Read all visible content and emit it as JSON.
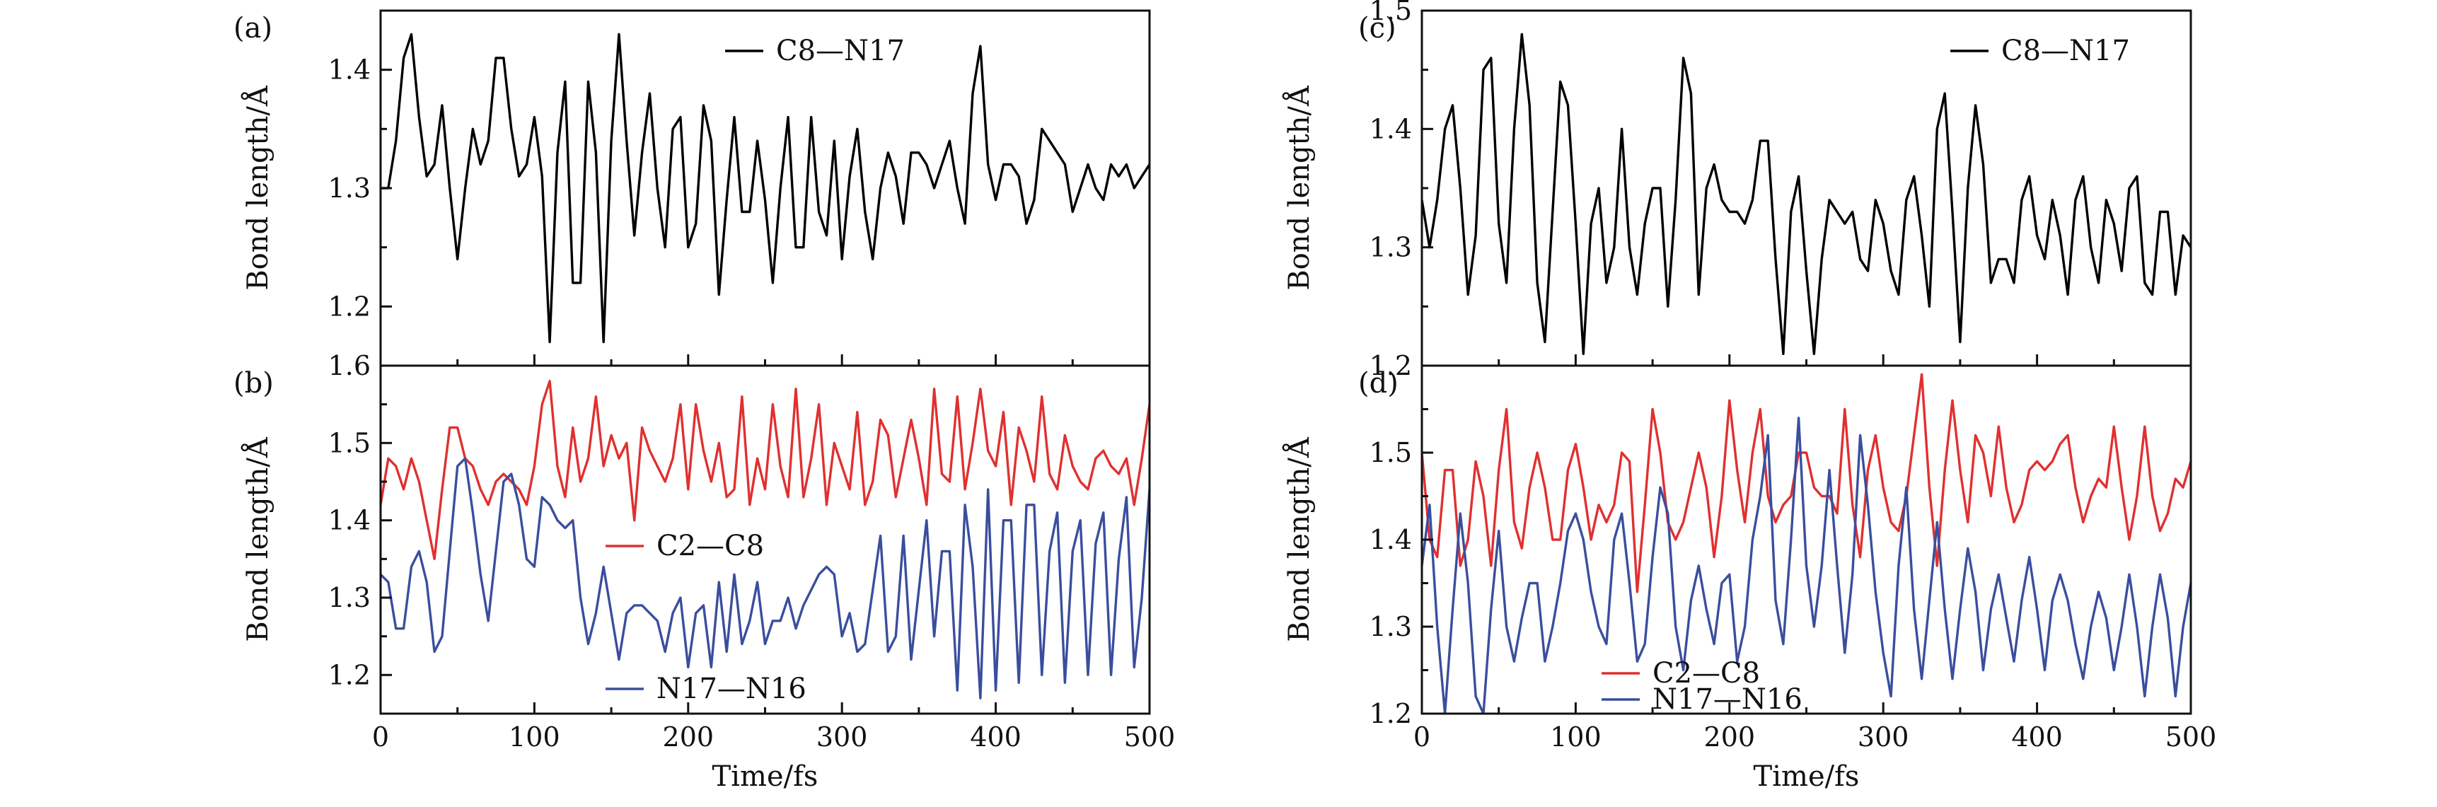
{
  "chart_data": [
    {
      "type": "line",
      "panel": "(a)",
      "x": [
        0,
        5,
        10,
        15,
        20,
        25,
        30,
        35,
        40,
        45,
        50,
        55,
        60,
        65,
        70,
        75,
        80,
        85,
        90,
        95,
        100,
        105,
        110,
        115,
        120,
        125,
        130,
        135,
        140,
        145,
        150,
        155,
        160,
        165,
        170,
        175,
        180,
        185,
        190,
        195,
        200,
        205,
        210,
        215,
        220,
        225,
        230,
        235,
        240,
        245,
        250,
        255,
        260,
        265,
        270,
        275,
        280,
        285,
        290,
        295,
        300,
        305,
        310,
        315,
        320,
        325,
        330,
        335,
        340,
        345,
        350,
        355,
        360,
        365,
        370,
        375,
        380,
        385,
        390,
        395,
        400,
        405,
        410,
        415,
        420,
        425,
        430,
        435,
        440,
        445,
        450,
        455,
        460,
        465,
        470,
        475,
        480,
        485,
        490,
        495,
        500
      ],
      "series": [
        {
          "name": "C8—N17",
          "color": "#000000",
          "values": [
            1.3,
            1.3,
            1.34,
            1.41,
            1.43,
            1.36,
            1.31,
            1.32,
            1.37,
            1.3,
            1.24,
            1.3,
            1.35,
            1.32,
            1.34,
            1.41,
            1.41,
            1.35,
            1.31,
            1.32,
            1.36,
            1.31,
            1.17,
            1.33,
            1.39,
            1.22,
            1.22,
            1.39,
            1.33,
            1.17,
            1.34,
            1.43,
            1.34,
            1.26,
            1.33,
            1.38,
            1.3,
            1.25,
            1.35,
            1.36,
            1.25,
            1.27,
            1.37,
            1.34,
            1.21,
            1.29,
            1.36,
            1.28,
            1.28,
            1.34,
            1.29,
            1.22,
            1.3,
            1.36,
            1.25,
            1.25,
            1.36,
            1.28,
            1.26,
            1.34,
            1.24,
            1.31,
            1.35,
            1.28,
            1.24,
            1.3,
            1.33,
            1.31,
            1.27,
            1.33,
            1.33,
            1.32,
            1.3,
            1.32,
            1.34,
            1.3,
            1.27,
            1.38,
            1.42,
            1.32,
            1.29,
            1.32,
            1.32,
            1.31,
            1.27,
            1.29,
            1.35,
            1.34,
            1.33,
            1.32,
            1.28,
            1.3,
            1.32,
            1.3,
            1.29,
            1.32,
            1.31,
            1.32,
            1.3,
            1.31,
            1.32
          ]
        }
      ],
      "xlim": [
        0,
        500
      ],
      "ylim": [
        1.15,
        1.45
      ],
      "yticks": [
        1.2,
        1.3,
        1.4
      ],
      "ytick_labels": [
        "1.2",
        "1.3",
        "1.4"
      ],
      "ylabel": "Bond length/Å",
      "legend": "top-right"
    },
    {
      "type": "line",
      "panel": "(b)",
      "x": [
        0,
        5,
        10,
        15,
        20,
        25,
        30,
        35,
        40,
        45,
        50,
        55,
        60,
        65,
        70,
        75,
        80,
        85,
        90,
        95,
        100,
        105,
        110,
        115,
        120,
        125,
        130,
        135,
        140,
        145,
        150,
        155,
        160,
        165,
        170,
        175,
        180,
        185,
        190,
        195,
        200,
        205,
        210,
        215,
        220,
        225,
        230,
        235,
        240,
        245,
        250,
        255,
        260,
        265,
        270,
        275,
        280,
        285,
        290,
        295,
        300,
        305,
        310,
        315,
        320,
        325,
        330,
        335,
        340,
        345,
        350,
        355,
        360,
        365,
        370,
        375,
        380,
        385,
        390,
        395,
        400,
        405,
        410,
        415,
        420,
        425,
        430,
        435,
        440,
        445,
        450,
        455,
        460,
        465,
        470,
        475,
        480,
        485,
        490,
        495,
        500
      ],
      "series": [
        {
          "name": "C2—C8",
          "color": "#e03030",
          "values": [
            1.42,
            1.48,
            1.47,
            1.44,
            1.48,
            1.45,
            1.4,
            1.35,
            1.44,
            1.52,
            1.52,
            1.48,
            1.47,
            1.44,
            1.42,
            1.45,
            1.46,
            1.45,
            1.44,
            1.42,
            1.47,
            1.55,
            1.58,
            1.47,
            1.43,
            1.52,
            1.45,
            1.48,
            1.56,
            1.47,
            1.51,
            1.48,
            1.5,
            1.4,
            1.52,
            1.49,
            1.47,
            1.45,
            1.48,
            1.55,
            1.44,
            1.55,
            1.49,
            1.45,
            1.5,
            1.43,
            1.44,
            1.56,
            1.42,
            1.48,
            1.44,
            1.55,
            1.47,
            1.43,
            1.57,
            1.43,
            1.48,
            1.55,
            1.42,
            1.5,
            1.47,
            1.44,
            1.54,
            1.42,
            1.45,
            1.53,
            1.51,
            1.43,
            1.48,
            1.53,
            1.48,
            1.42,
            1.57,
            1.46,
            1.45,
            1.56,
            1.44,
            1.5,
            1.57,
            1.49,
            1.47,
            1.54,
            1.42,
            1.52,
            1.49,
            1.45,
            1.56,
            1.46,
            1.44,
            1.51,
            1.47,
            1.45,
            1.44,
            1.48,
            1.49,
            1.47,
            1.46,
            1.48,
            1.42,
            1.48,
            1.55
          ]
        },
        {
          "name": "N17—N16",
          "color": "#3a4e9e",
          "values": [
            1.33,
            1.32,
            1.26,
            1.26,
            1.34,
            1.36,
            1.32,
            1.23,
            1.25,
            1.36,
            1.47,
            1.48,
            1.41,
            1.33,
            1.27,
            1.36,
            1.45,
            1.46,
            1.42,
            1.35,
            1.34,
            1.43,
            1.42,
            1.4,
            1.39,
            1.4,
            1.3,
            1.24,
            1.28,
            1.34,
            1.28,
            1.22,
            1.28,
            1.29,
            1.29,
            1.28,
            1.27,
            1.23,
            1.28,
            1.3,
            1.21,
            1.28,
            1.29,
            1.21,
            1.32,
            1.23,
            1.33,
            1.24,
            1.27,
            1.32,
            1.24,
            1.27,
            1.27,
            1.3,
            1.26,
            1.29,
            1.31,
            1.33,
            1.34,
            1.33,
            1.25,
            1.28,
            1.23,
            1.24,
            1.31,
            1.38,
            1.23,
            1.25,
            1.38,
            1.22,
            1.31,
            1.4,
            1.25,
            1.36,
            1.36,
            1.18,
            1.42,
            1.34,
            1.17,
            1.44,
            1.18,
            1.4,
            1.4,
            1.19,
            1.42,
            1.42,
            1.2,
            1.36,
            1.41,
            1.19,
            1.36,
            1.4,
            1.2,
            1.37,
            1.41,
            1.2,
            1.35,
            1.43,
            1.21,
            1.3,
            1.44
          ]
        }
      ],
      "xlim": [
        0,
        500
      ],
      "ylim": [
        1.15,
        1.6
      ],
      "yticks": [
        1.2,
        1.3,
        1.4,
        1.5,
        1.6
      ],
      "ytick_labels": [
        "1.2",
        "1.3",
        "1.4",
        "1.5",
        "1.6"
      ],
      "xticks": [
        0,
        100,
        200,
        300,
        400,
        500
      ],
      "xtick_labels": [
        "0",
        "100",
        "200",
        "300",
        "400",
        "500"
      ],
      "xlabel": "Time/fs",
      "ylabel": "Bond length/Å",
      "legend": "center"
    },
    {
      "type": "line",
      "panel": "(c)",
      "x": [
        0,
        5,
        10,
        15,
        20,
        25,
        30,
        35,
        40,
        45,
        50,
        55,
        60,
        65,
        70,
        75,
        80,
        85,
        90,
        95,
        100,
        105,
        110,
        115,
        120,
        125,
        130,
        135,
        140,
        145,
        150,
        155,
        160,
        165,
        170,
        175,
        180,
        185,
        190,
        195,
        200,
        205,
        210,
        215,
        220,
        225,
        230,
        235,
        240,
        245,
        250,
        255,
        260,
        265,
        270,
        275,
        280,
        285,
        290,
        295,
        300,
        305,
        310,
        315,
        320,
        325,
        330,
        335,
        340,
        345,
        350,
        355,
        360,
        365,
        370,
        375,
        380,
        385,
        390,
        395,
        400,
        405,
        410,
        415,
        420,
        425,
        430,
        435,
        440,
        445,
        450,
        455,
        460,
        465,
        470,
        475,
        480,
        485,
        490,
        495,
        500
      ],
      "series": [
        {
          "name": "C8—N17",
          "color": "#000000",
          "values": [
            1.34,
            1.3,
            1.34,
            1.4,
            1.42,
            1.35,
            1.26,
            1.31,
            1.45,
            1.46,
            1.32,
            1.27,
            1.4,
            1.48,
            1.42,
            1.27,
            1.22,
            1.33,
            1.44,
            1.42,
            1.32,
            1.21,
            1.32,
            1.35,
            1.27,
            1.3,
            1.4,
            1.3,
            1.26,
            1.32,
            1.35,
            1.35,
            1.25,
            1.34,
            1.46,
            1.43,
            1.26,
            1.35,
            1.37,
            1.34,
            1.33,
            1.33,
            1.32,
            1.34,
            1.39,
            1.39,
            1.29,
            1.21,
            1.33,
            1.36,
            1.28,
            1.21,
            1.29,
            1.34,
            1.33,
            1.32,
            1.33,
            1.29,
            1.28,
            1.34,
            1.32,
            1.28,
            1.26,
            1.34,
            1.36,
            1.31,
            1.25,
            1.4,
            1.43,
            1.33,
            1.22,
            1.35,
            1.42,
            1.37,
            1.27,
            1.29,
            1.29,
            1.27,
            1.34,
            1.36,
            1.31,
            1.29,
            1.34,
            1.31,
            1.26,
            1.34,
            1.36,
            1.3,
            1.27,
            1.34,
            1.32,
            1.28,
            1.35,
            1.36,
            1.27,
            1.26,
            1.33,
            1.33,
            1.26,
            1.31,
            1.3
          ]
        }
      ],
      "xlim": [
        0,
        500
      ],
      "ylim": [
        1.2,
        1.5
      ],
      "yticks": [
        1.2,
        1.3,
        1.4,
        1.5
      ],
      "ytick_labels": [
        "1.2",
        "1.3",
        "1.4",
        "1.5"
      ],
      "ylabel": "Bond length/Å",
      "legend": "top-right"
    },
    {
      "type": "line",
      "panel": "(d)",
      "x": [
        0,
        5,
        10,
        15,
        20,
        25,
        30,
        35,
        40,
        45,
        50,
        55,
        60,
        65,
        70,
        75,
        80,
        85,
        90,
        95,
        100,
        105,
        110,
        115,
        120,
        125,
        130,
        135,
        140,
        145,
        150,
        155,
        160,
        165,
        170,
        175,
        180,
        185,
        190,
        195,
        200,
        205,
        210,
        215,
        220,
        225,
        230,
        235,
        240,
        245,
        250,
        255,
        260,
        265,
        270,
        275,
        280,
        285,
        290,
        295,
        300,
        305,
        310,
        315,
        320,
        325,
        330,
        335,
        340,
        345,
        350,
        355,
        360,
        365,
        370,
        375,
        380,
        385,
        390,
        395,
        400,
        405,
        410,
        415,
        420,
        425,
        430,
        435,
        440,
        445,
        450,
        455,
        460,
        465,
        470,
        475,
        480,
        485,
        490,
        495,
        500
      ],
      "series": [
        {
          "name": "C2—C8",
          "color": "#e03030",
          "values": [
            1.5,
            1.4,
            1.38,
            1.48,
            1.48,
            1.37,
            1.4,
            1.49,
            1.45,
            1.37,
            1.48,
            1.55,
            1.42,
            1.39,
            1.46,
            1.5,
            1.46,
            1.4,
            1.4,
            1.48,
            1.51,
            1.46,
            1.4,
            1.44,
            1.42,
            1.44,
            1.5,
            1.49,
            1.34,
            1.44,
            1.55,
            1.5,
            1.42,
            1.4,
            1.42,
            1.46,
            1.5,
            1.46,
            1.38,
            1.45,
            1.56,
            1.48,
            1.42,
            1.5,
            1.55,
            1.45,
            1.42,
            1.44,
            1.45,
            1.5,
            1.5,
            1.46,
            1.45,
            1.45,
            1.43,
            1.55,
            1.44,
            1.38,
            1.48,
            1.52,
            1.46,
            1.42,
            1.41,
            1.45,
            1.52,
            1.59,
            1.46,
            1.37,
            1.48,
            1.56,
            1.48,
            1.42,
            1.52,
            1.5,
            1.45,
            1.53,
            1.46,
            1.42,
            1.44,
            1.48,
            1.49,
            1.48,
            1.49,
            1.51,
            1.52,
            1.46,
            1.42,
            1.45,
            1.47,
            1.46,
            1.53,
            1.46,
            1.4,
            1.45,
            1.53,
            1.45,
            1.41,
            1.43,
            1.47,
            1.46,
            1.49
          ]
        },
        {
          "name": "N17—N16",
          "color": "#3a4e9e",
          "values": [
            1.37,
            1.44,
            1.3,
            1.2,
            1.32,
            1.43,
            1.35,
            1.22,
            1.2,
            1.32,
            1.41,
            1.3,
            1.26,
            1.31,
            1.35,
            1.35,
            1.26,
            1.3,
            1.35,
            1.41,
            1.43,
            1.4,
            1.34,
            1.3,
            1.28,
            1.4,
            1.43,
            1.35,
            1.26,
            1.28,
            1.38,
            1.46,
            1.43,
            1.3,
            1.25,
            1.33,
            1.37,
            1.32,
            1.28,
            1.35,
            1.36,
            1.26,
            1.3,
            1.4,
            1.45,
            1.52,
            1.33,
            1.28,
            1.4,
            1.54,
            1.37,
            1.3,
            1.37,
            1.48,
            1.37,
            1.27,
            1.36,
            1.52,
            1.44,
            1.34,
            1.27,
            1.22,
            1.37,
            1.46,
            1.32,
            1.24,
            1.33,
            1.42,
            1.32,
            1.24,
            1.32,
            1.39,
            1.34,
            1.25,
            1.32,
            1.36,
            1.31,
            1.26,
            1.33,
            1.38,
            1.32,
            1.25,
            1.33,
            1.36,
            1.33,
            1.28,
            1.24,
            1.3,
            1.34,
            1.31,
            1.25,
            1.3,
            1.36,
            1.3,
            1.22,
            1.3,
            1.36,
            1.31,
            1.22,
            1.3,
            1.35
          ]
        }
      ],
      "xlim": [
        0,
        500
      ],
      "ylim": [
        1.2,
        1.6
      ],
      "yticks": [
        1.2,
        1.3,
        1.4,
        1.5
      ],
      "ytick_labels": [
        "1.2",
        "1.3",
        "1.4",
        "1.5"
      ],
      "xticks": [
        0,
        100,
        200,
        300,
        400,
        500
      ],
      "xtick_labels": [
        "0",
        "100",
        "200",
        "300",
        "400",
        "500"
      ],
      "xlabel": "Time/fs",
      "ylabel": "Bond length/Å",
      "legend": "bottom-left"
    }
  ]
}
